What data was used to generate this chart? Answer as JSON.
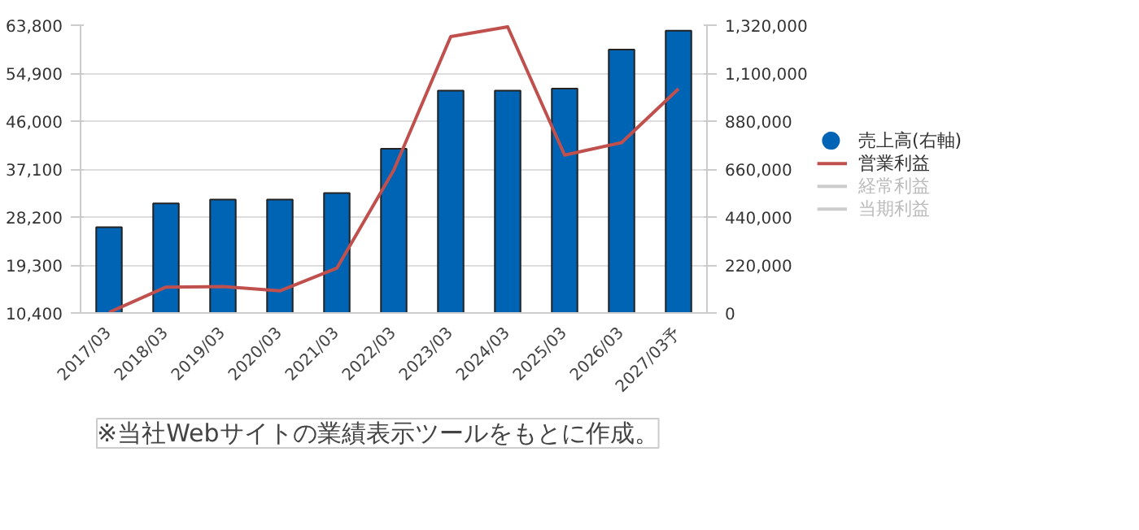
{
  "chart_data": {
    "type": "bar",
    "categories": [
      "2017/03",
      "2018/03",
      "2019/03",
      "2020/03",
      "2021/03",
      "2022/03",
      "2023/03",
      "2024/03",
      "2025/03",
      "2026/03",
      "2027/03予"
    ],
    "series": [
      {
        "name": "売上高(右軸)",
        "axis": "y2",
        "color": "#0064b4",
        "values": [
          393000,
          502000,
          520000,
          520000,
          550000,
          753000,
          1020000,
          1020000,
          1029000,
          1208000,
          1295000
        ]
      },
      {
        "name": "営業利益",
        "type": "line",
        "color": "#c0504d",
        "values": [
          10500,
          15200,
          15300,
          14500,
          18700,
          36900,
          61700,
          63500,
          39700,
          42000,
          52000
        ]
      },
      {
        "name": "経常利益",
        "type": "line",
        "color": "#cccccc",
        "values": [
          null,
          null,
          null,
          null,
          null,
          null,
          null,
          null,
          null,
          null,
          null
        ]
      },
      {
        "name": "当期利益",
        "type": "line",
        "color": "#cccccc",
        "values": [
          null,
          null,
          null,
          null,
          null,
          null,
          null,
          null,
          null,
          null,
          null
        ]
      }
    ],
    "ylim": [
      10400,
      63800
    ],
    "yticks": [
      {
        "value": 10400,
        "label": "10,400"
      },
      {
        "value": 19300,
        "label": "19,300"
      },
      {
        "value": 28200,
        "label": "28,200"
      },
      {
        "value": 37100,
        "label": "37,100"
      },
      {
        "value": 46000,
        "label": "46,000"
      },
      {
        "value": 54900,
        "label": "54,900"
      },
      {
        "value": 63800,
        "label": "63,800"
      }
    ],
    "y2lim": [
      0,
      1320000
    ],
    "y2ticks": [
      0,
      {
        "value": 220000,
        "label": "220,000"
      },
      {
        "value": 440000,
        "label": "440,000"
      },
      {
        "value": 660000,
        "label": "660,000"
      },
      {
        "value": 880000,
        "label": "880,000"
      },
      {
        "value": 1100000,
        "label": "1,100,000"
      },
      {
        "value": 1320000,
        "label": "1,320,000"
      }
    ],
    "grid": "y",
    "legend": "right",
    "annotations": [
      "※当社Webサイトの業績表示ツールをもとに作成。"
    ]
  }
}
